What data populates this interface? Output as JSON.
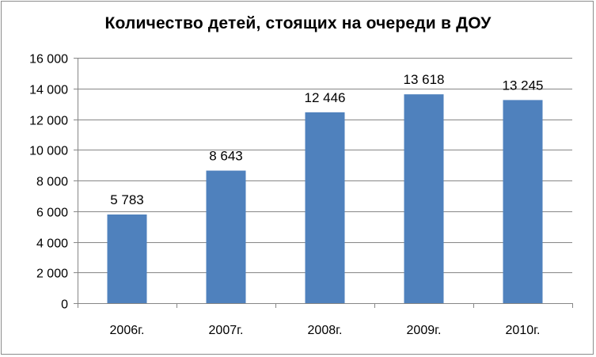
{
  "chart_data": {
    "type": "bar",
    "title": "Количество детей, стоящих на очереди в ДОУ",
    "xlabel": "",
    "ylabel": "",
    "categories": [
      "2006г.",
      "2007г.",
      "2008г.",
      "2009г.",
      "2010г."
    ],
    "values": [
      5783,
      8643,
      12446,
      13618,
      13245
    ],
    "data_labels": [
      "5 783",
      "8 643",
      "12 446",
      "13 618",
      "13 245"
    ],
    "ylim": [
      0,
      16000
    ],
    "y_ticks": [
      0,
      2000,
      4000,
      6000,
      8000,
      10000,
      12000,
      14000,
      16000
    ],
    "y_tick_labels": [
      "0",
      "2 000",
      "4 000",
      "6 000",
      "8 000",
      "10 000",
      "12 000",
      "14 000",
      "16 000"
    ],
    "grid": true,
    "legend": "none",
    "bar_color": "#4F81BD",
    "grid_color": "#868686"
  }
}
